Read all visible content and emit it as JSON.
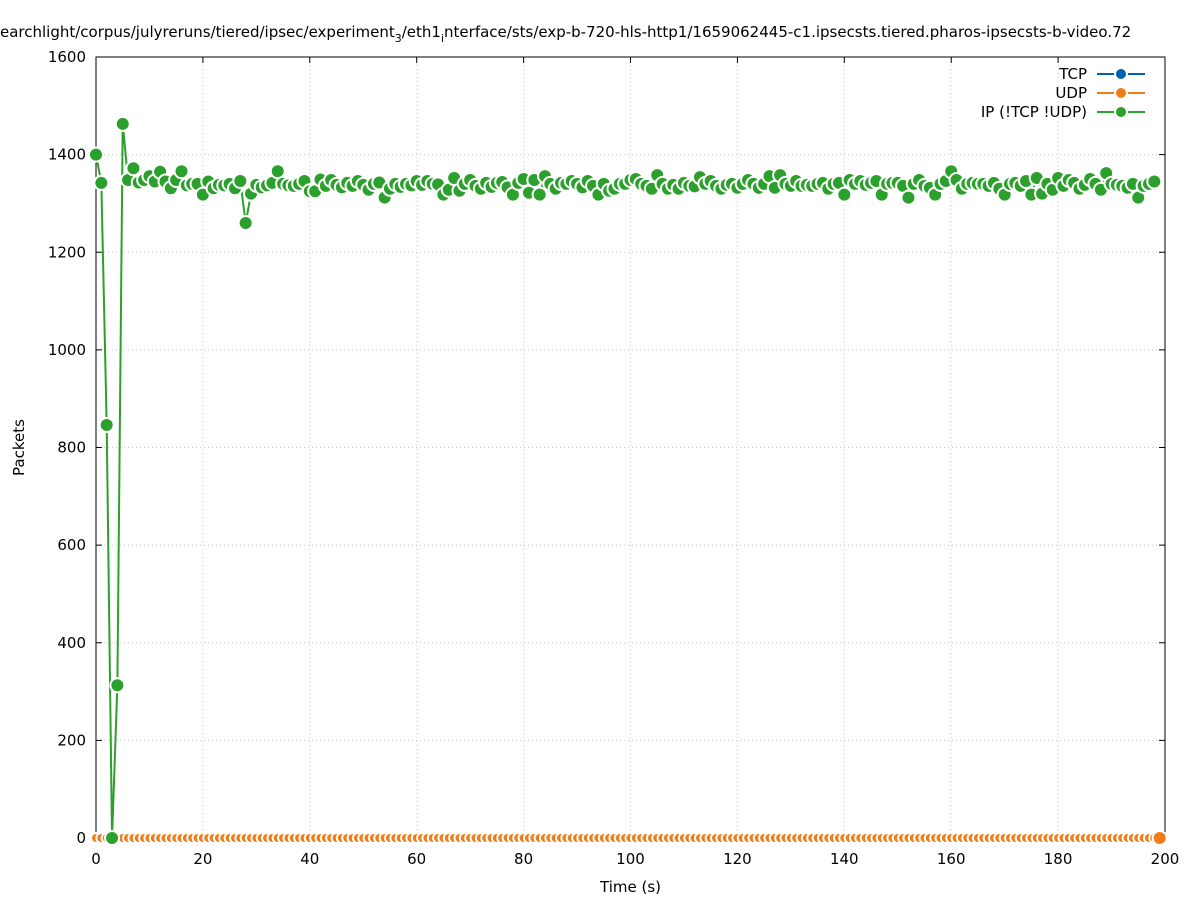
{
  "chart_data": {
    "type": "line",
    "title": "earchlight/corpus/julyreruns/tiered/ipsec/experiment",
    "title_parts": {
      "lead": "earchlight/corpus/julyreruns/tiered/ipsec/experiment",
      "sub1": "3",
      "mid": "/eth1",
      "sub2": "i",
      "tail": "nterface/sts/exp-b-720-hls-http1/1659062445-c1.ipsecsts.tiered.pharos-ipsecsts-b-video.72"
    },
    "xlabel": "Time (s)",
    "ylabel": "Packets",
    "xlim": [
      0,
      200
    ],
    "ylim": [
      0,
      1600
    ],
    "x_ticks": [
      "0",
      "20",
      "40",
      "60",
      "80",
      "100",
      "120",
      "140",
      "160",
      "180",
      "200"
    ],
    "y_ticks": [
      "0",
      "200",
      "400",
      "600",
      "800",
      "1000",
      "1200",
      "1400",
      "1600"
    ],
    "grid": true,
    "legend_position": "top-right",
    "series": [
      {
        "name": "TCP",
        "color": "#0060ad",
        "style": "line-points",
        "x": [],
        "y": []
      },
      {
        "name": "UDP",
        "color": "#f07c1a",
        "style": "line-points",
        "constant": 0,
        "x_start": 0,
        "x_end": 199,
        "x_step": 1
      },
      {
        "name": "IP (!TCP  !UDP)",
        "color": "#2ca02c",
        "style": "line-points",
        "x_start": 0,
        "x_step": 1,
        "y": [
          1400,
          1342,
          846,
          0,
          313,
          1463,
          1348,
          1372,
          1343,
          1348,
          1356,
          1345,
          1365,
          1345,
          1331,
          1348,
          1366,
          1337,
          1340,
          1340,
          1318,
          1345,
          1331,
          1338,
          1337,
          1340,
          1331,
          1346,
          1260,
          1320,
          1338,
          1333,
          1337,
          1342,
          1366,
          1340,
          1337,
          1336,
          1340,
          1346,
          1325,
          1325,
          1349,
          1336,
          1348,
          1338,
          1333,
          1342,
          1336,
          1346,
          1338,
          1328,
          1340,
          1343,
          1312,
          1330,
          1340,
          1334,
          1340,
          1337,
          1346,
          1338,
          1346,
          1340,
          1339,
          1318,
          1328,
          1352,
          1326,
          1340,
          1348,
          1336,
          1330,
          1342,
          1334,
          1342,
          1344,
          1333,
          1318,
          1342,
          1350,
          1322,
          1348,
          1318,
          1356,
          1340,
          1330,
          1342,
          1340,
          1346,
          1340,
          1333,
          1346,
          1336,
          1318,
          1340,
          1326,
          1330,
          1340,
          1340,
          1348,
          1350,
          1340,
          1336,
          1330,
          1358,
          1340,
          1330,
          1338,
          1330,
          1342,
          1336,
          1335,
          1354,
          1340,
          1346,
          1336,
          1330,
          1338,
          1340,
          1332,
          1340,
          1348,
          1340,
          1332,
          1340,
          1356,
          1332,
          1358,
          1340,
          1336,
          1346,
          1336,
          1338,
          1336,
          1340,
          1342,
          1330,
          1340,
          1342,
          1318,
          1348,
          1340,
          1346,
          1338,
          1342,
          1346,
          1318,
          1340,
          1342,
          1342,
          1336,
          1312,
          1340,
          1348,
          1336,
          1332,
          1318,
          1340,
          1346,
          1366,
          1348,
          1330,
          1340,
          1342,
          1340,
          1340,
          1336,
          1342,
          1330,
          1318,
          1340,
          1342,
          1336,
          1346,
          1318,
          1352,
          1320,
          1340,
          1328,
          1352,
          1336,
          1348,
          1342,
          1330,
          1338,
          1350,
          1340,
          1328,
          1362,
          1340,
          1338,
          1336,
          1332,
          1340,
          1312,
          1336,
          1340,
          1345
        ]
      }
    ]
  }
}
